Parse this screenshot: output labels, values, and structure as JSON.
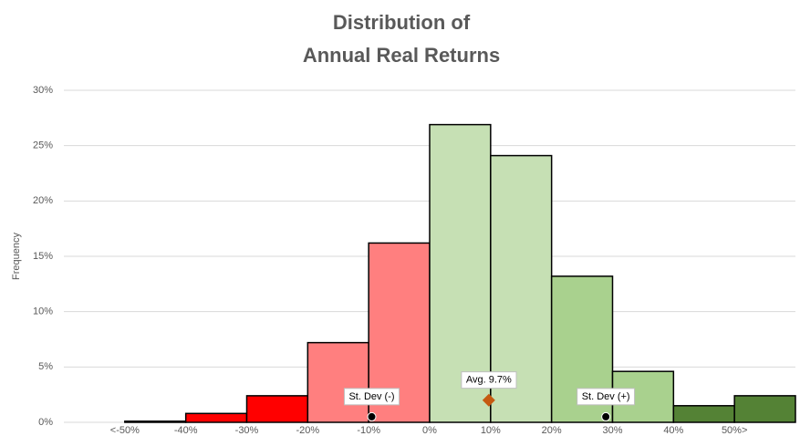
{
  "chart_data": {
    "type": "histogram",
    "title": [
      "Distribution of",
      "Annual Real Returns"
    ],
    "y_label": "Frequency",
    "bins": [
      -50,
      -40,
      -30,
      -20,
      -10,
      0,
      10,
      20,
      30,
      40,
      50,
      60
    ],
    "values": [
      0.1,
      0.8,
      2.4,
      7.2,
      16.2,
      26.9,
      24.1,
      13.2,
      4.6,
      1.5,
      2.4
    ],
    "colors": [
      "#ff0000",
      "#ff0000",
      "#ff0000",
      "#ff7f7f",
      "#ff7f7f",
      "#c6e0b4",
      "#c6e0b4",
      "#a9d18e",
      "#a9d18e",
      "#548235",
      "#548235"
    ],
    "xlim": [
      -60,
      60
    ],
    "xticks": [
      {
        "value": -50,
        "label": "<-50%"
      },
      {
        "value": -40,
        "label": "-40%"
      },
      {
        "value": -30,
        "label": "-30%"
      },
      {
        "value": -20,
        "label": "-20%"
      },
      {
        "value": -10,
        "label": "-10%"
      },
      {
        "value": 0,
        "label": "0%"
      },
      {
        "value": 10,
        "label": "10%"
      },
      {
        "value": 20,
        "label": "20%"
      },
      {
        "value": 30,
        "label": "30%"
      },
      {
        "value": 40,
        "label": "40%"
      },
      {
        "value": 50,
        "label": "50%>"
      }
    ],
    "ylim": [
      0,
      30
    ],
    "yticks": [
      {
        "value": 0,
        "label": "0%"
      },
      {
        "value": 5,
        "label": "5%"
      },
      {
        "value": 10,
        "label": "10%"
      },
      {
        "value": 15,
        "label": "15%"
      },
      {
        "value": 20,
        "label": "20%"
      },
      {
        "value": 25,
        "label": "25%"
      },
      {
        "value": 30,
        "label": "30%"
      }
    ],
    "grid": true,
    "markers": [
      {
        "label": "St. Dev (-)",
        "x": -9.5,
        "y": 0.5,
        "color": "#000000",
        "shape": "circle"
      },
      {
        "label": "Avg. 9.7%",
        "x": 9.7,
        "y": 2,
        "color": "#c55a11",
        "shape": "diamond"
      },
      {
        "label": "St. Dev (+)",
        "x": 28.9,
        "y": 0.5,
        "color": "#000000",
        "shape": "circle"
      }
    ]
  }
}
